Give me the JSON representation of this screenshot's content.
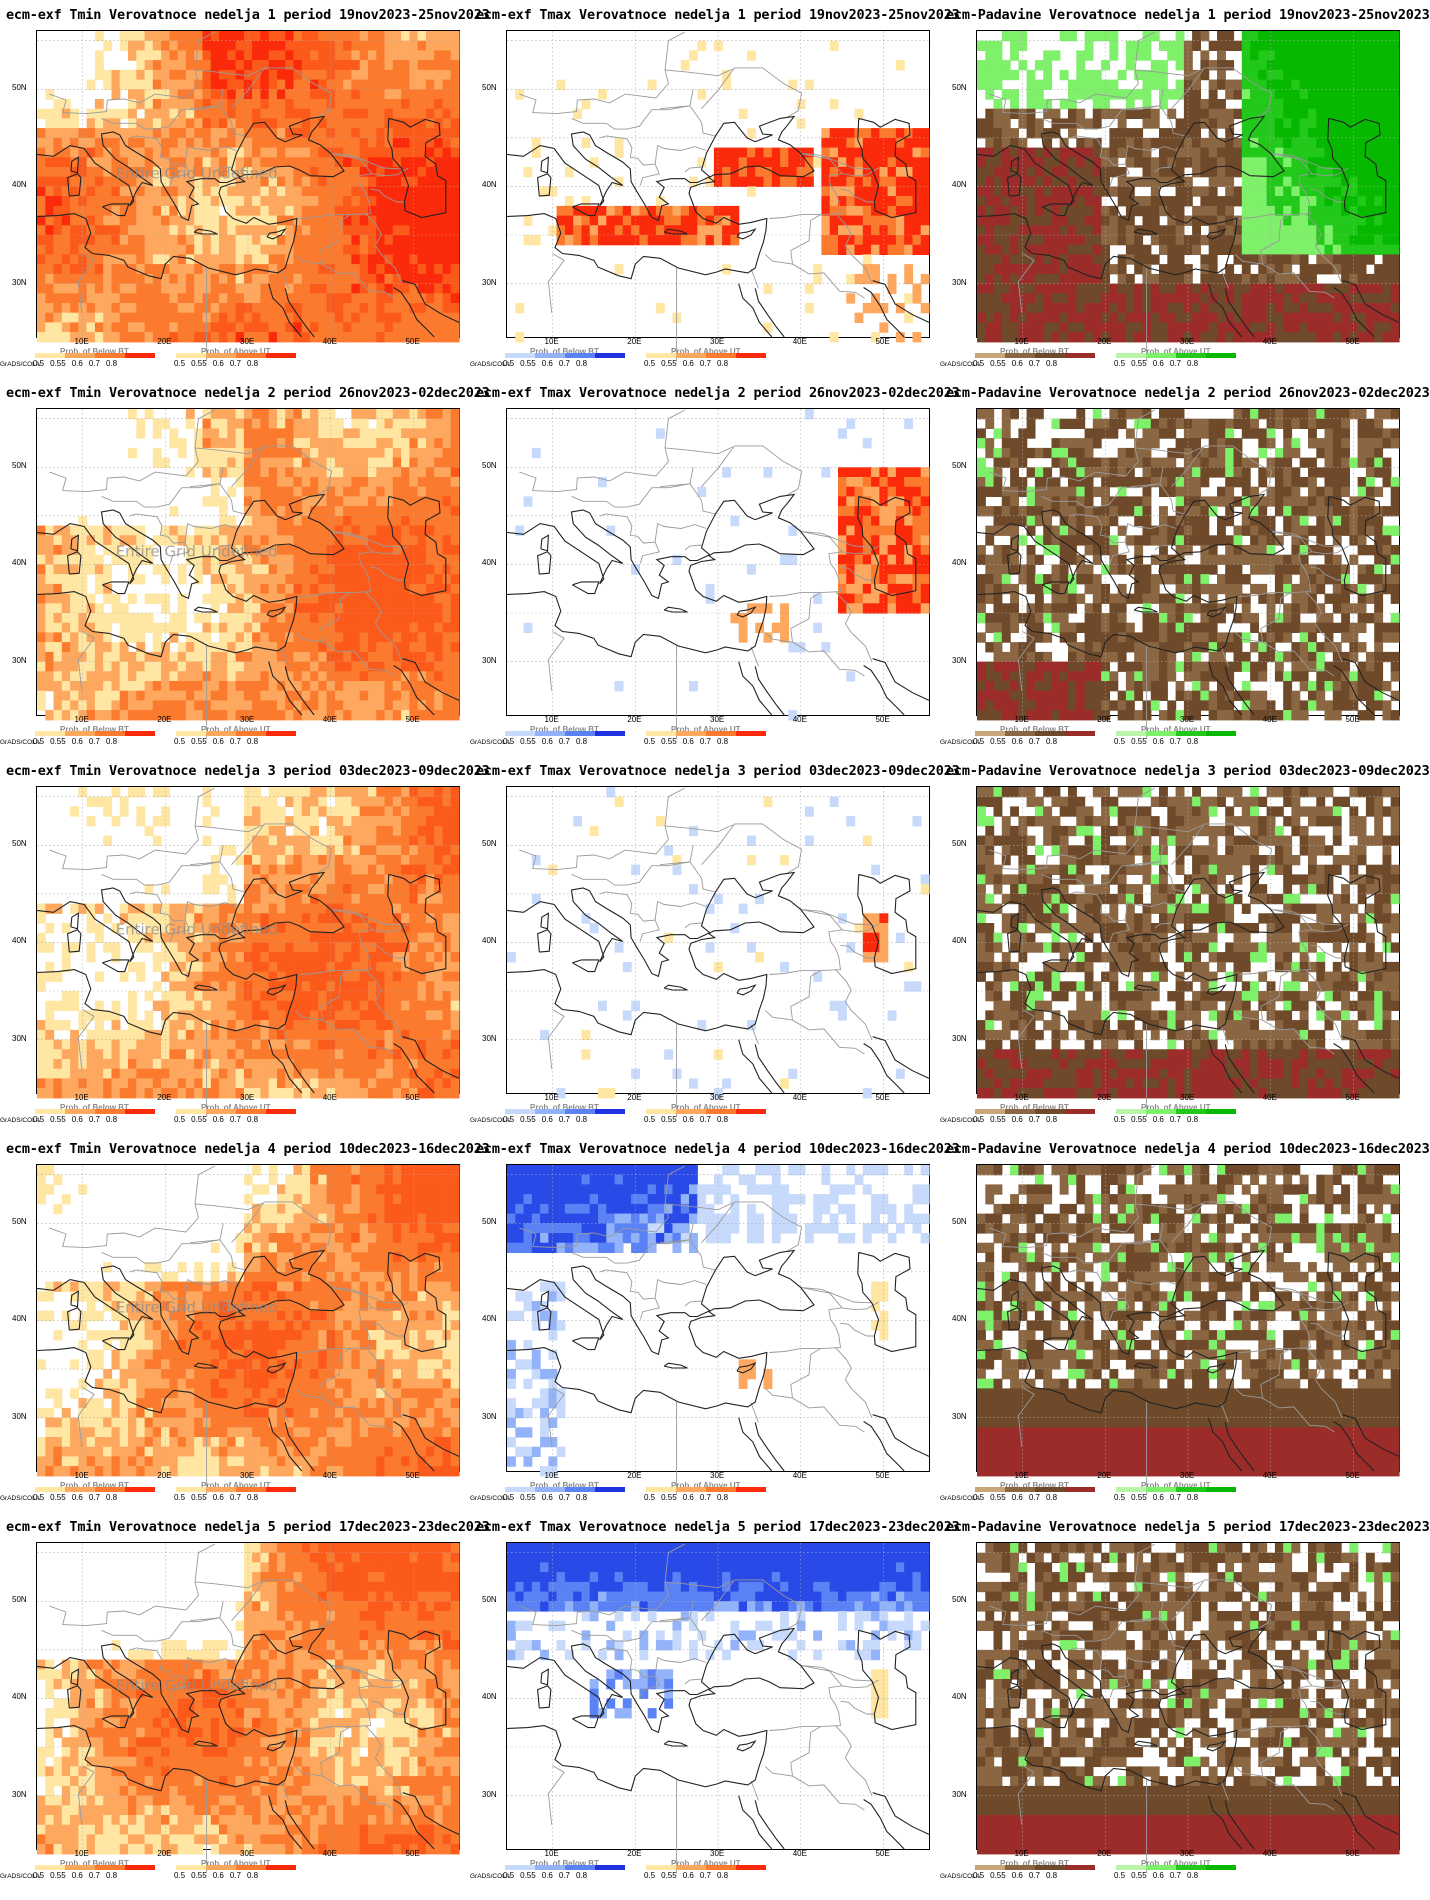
{
  "credit": "GrADS/COLA",
  "colorbars": {
    "below": {
      "title": "Prob. of Below BT",
      "ticks": [
        "0.5",
        "0.55",
        "0.6",
        "0.7",
        "0.8"
      ]
    },
    "above": {
      "title": "Prob. of Above UT",
      "ticks": [
        "0.5",
        "0.55",
        "0.6",
        "0.7",
        "0.8"
      ]
    }
  },
  "axes": {
    "lat_labels": [
      "50N",
      "40N",
      "30N"
    ],
    "lon_labels": [
      "10E",
      "20E",
      "30E",
      "40E",
      "50E"
    ]
  },
  "watermark": "Entire Grid Undefined",
  "palettes": {
    "tmin": [
      "#ffffff",
      "#ffe7a3",
      "#fda85e",
      "#fb7a2e",
      "#fb5a1a",
      "#fb2a0a"
    ],
    "tmax": [
      "#ffffff",
      "#c8dafc",
      "#92b2fa",
      "#5a82f4",
      "#2a4ae8",
      "#ffe7a3",
      "#fda85e",
      "#fb7a2e",
      "#fb2a0a"
    ],
    "pad": [
      "#ffffff",
      "#c9a679",
      "#8a6642",
      "#6e4a2a",
      "#9c2c2a",
      "#b8f5a8",
      "#7ef06a",
      "#22c81a",
      "#06b800"
    ]
  },
  "maps": [
    {
      "title": "ecm-exf Tmin Verovatnoce nedelja 1 period 19nov2023-25nov2023",
      "variable": "tmin",
      "watermark_shown": true,
      "dominant": "strong above (red)"
    },
    {
      "title": "ecm-exf Tmax Verovatnoce nedelja 1 period 19nov2023-25nov2023",
      "variable": "tmax",
      "watermark_shown": false,
      "dominant": "above in Mediterranean and east"
    },
    {
      "title": "ecm-Padavine Verovatnoce nedelja 1 period 19nov2023-25nov2023",
      "variable": "pad",
      "watermark_shown": false,
      "dominant": "dry west/south, wet north-east"
    },
    {
      "title": "ecm-exf Tmin Verovatnoce nedelja 2 period 26nov2023-02dec2023",
      "variable": "tmin",
      "watermark_shown": true,
      "dominant": "above (orange-red)"
    },
    {
      "title": "ecm-exf Tmax Verovatnoce nedelja 2 period 26nov2023-02dec2023",
      "variable": "tmax",
      "watermark_shown": false,
      "dominant": "mostly neutral, above in east"
    },
    {
      "title": "ecm-Padavine Verovatnoce nedelja 2 period 26nov2023-02dec2023",
      "variable": "pad",
      "watermark_shown": false,
      "dominant": "mostly dry"
    },
    {
      "title": "ecm-exf Tmin Verovatnoce nedelja 3 period 03dec2023-09dec2023",
      "variable": "tmin",
      "watermark_shown": true,
      "dominant": "above (orange)"
    },
    {
      "title": "ecm-exf Tmax Verovatnoce nedelja 3 period 03dec2023-09dec2023",
      "variable": "tmax",
      "watermark_shown": false,
      "dominant": "mostly neutral"
    },
    {
      "title": "ecm-Padavine Verovatnoce nedelja 3 period 03dec2023-09dec2023",
      "variable": "pad",
      "watermark_shown": false,
      "dominant": "mostly dry"
    },
    {
      "title": "ecm-exf Tmin Verovatnoce nedelja 4 period 10dec2023-16dec2023",
      "variable": "tmin",
      "watermark_shown": true,
      "dominant": "above (orange)"
    },
    {
      "title": "ecm-exf Tmax Verovatnoce nedelja 4 period 10dec2023-16dec2023",
      "variable": "tmax",
      "watermark_shown": false,
      "dominant": "below in north and west"
    },
    {
      "title": "ecm-Padavine Verovatnoce nedelja 4 period 10dec2023-16dec2023",
      "variable": "pad",
      "watermark_shown": false,
      "dominant": "mostly dry"
    },
    {
      "title": "ecm-exf Tmin Verovatnoce nedelja 5 period 17dec2023-23dec2023",
      "variable": "tmin",
      "watermark_shown": true,
      "dominant": "above (orange)"
    },
    {
      "title": "ecm-exf Tmax Verovatnoce nedelja 5 period 17dec2023-23dec2023",
      "variable": "tmax",
      "watermark_shown": false,
      "dominant": "below in north"
    },
    {
      "title": "ecm-Padavine Verovatnoce nedelja 5 period 17dec2023-23dec2023",
      "variable": "pad",
      "watermark_shown": false,
      "dominant": "mostly dry"
    }
  ]
}
